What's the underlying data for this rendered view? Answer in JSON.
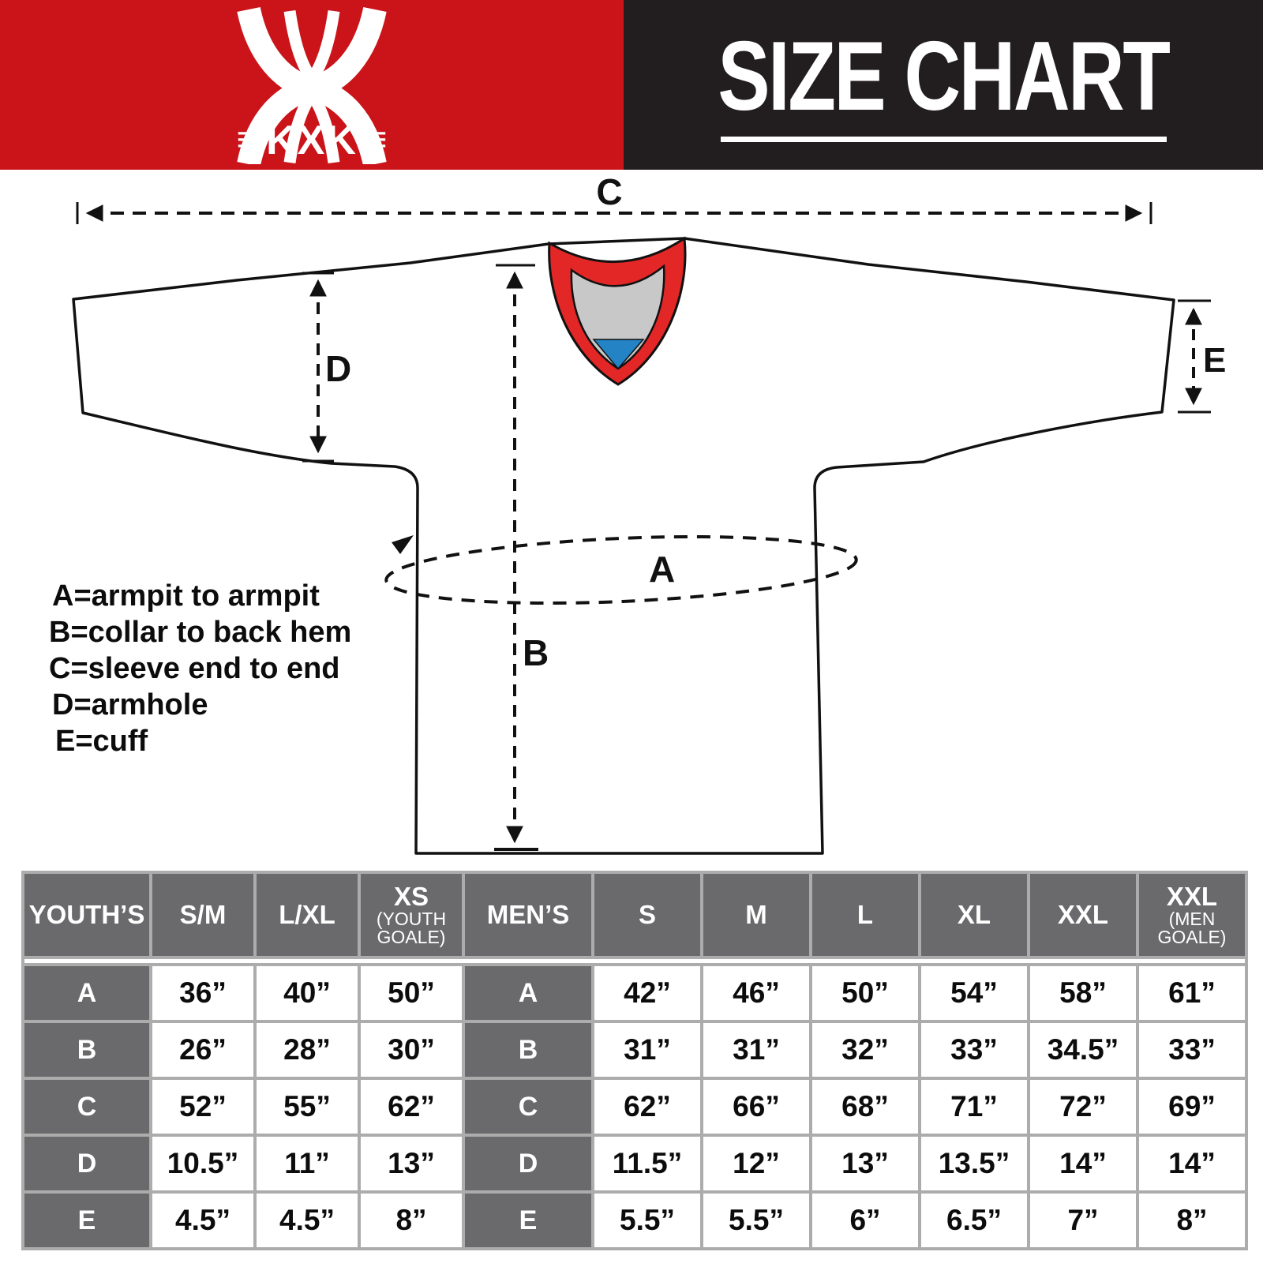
{
  "banner": {
    "logo": {
      "bars": "≡",
      "text": "KXK"
    },
    "title": "SIZE CHART",
    "colors": {
      "red": "#ca1419",
      "black": "#221e1f"
    }
  },
  "diagram": {
    "labels": {
      "a": "A",
      "b": "B",
      "c": "C",
      "d": "D",
      "e": "E"
    },
    "legend": [
      "A=armpit to armpit",
      "B=collar to back hem",
      "C=sleeve end to end",
      "D=armhole",
      "E=cuff"
    ],
    "colors": {
      "collar_outer": "#e22726",
      "collar_inner": "#c8c8c8",
      "collar_bottom": "#2383c5",
      "outline": "#111111"
    }
  },
  "size_table": {
    "youth_header": "YOUTH’S",
    "men_header": "MEN’S",
    "youth_columns": [
      {
        "main": "S/M",
        "sub": ""
      },
      {
        "main": "L/XL",
        "sub": ""
      },
      {
        "main": "XS",
        "sub": "(YOUTH GOALE)"
      }
    ],
    "men_columns": [
      {
        "main": "S",
        "sub": ""
      },
      {
        "main": "M",
        "sub": ""
      },
      {
        "main": "L",
        "sub": ""
      },
      {
        "main": "XL",
        "sub": ""
      },
      {
        "main": "XXL",
        "sub": ""
      },
      {
        "main": "XXL",
        "sub": "(MEN GOALE)"
      }
    ],
    "rows": [
      {
        "label": "A",
        "youth": [
          "36”",
          "40”",
          "50”"
        ],
        "men": [
          "42”",
          "46”",
          "50”",
          "54”",
          "58”",
          "61”"
        ]
      },
      {
        "label": "B",
        "youth": [
          "26”",
          "28”",
          "30”"
        ],
        "men": [
          "31”",
          "31”",
          "32”",
          "33”",
          "34.5”",
          "33”"
        ]
      },
      {
        "label": "C",
        "youth": [
          "52”",
          "55”",
          "62”"
        ],
        "men": [
          "62”",
          "66”",
          "68”",
          "71”",
          "72”",
          "69”"
        ]
      },
      {
        "label": "D",
        "youth": [
          "10.5”",
          "11”",
          "13”"
        ],
        "men": [
          "11.5”",
          "12”",
          "13”",
          "13.5”",
          "14”",
          "14”"
        ]
      },
      {
        "label": "E",
        "youth": [
          "4.5”",
          "4.5”",
          "8”"
        ],
        "men": [
          "5.5”",
          "5.5”",
          "6”",
          "6.5”",
          "7”",
          "8”"
        ]
      }
    ]
  }
}
